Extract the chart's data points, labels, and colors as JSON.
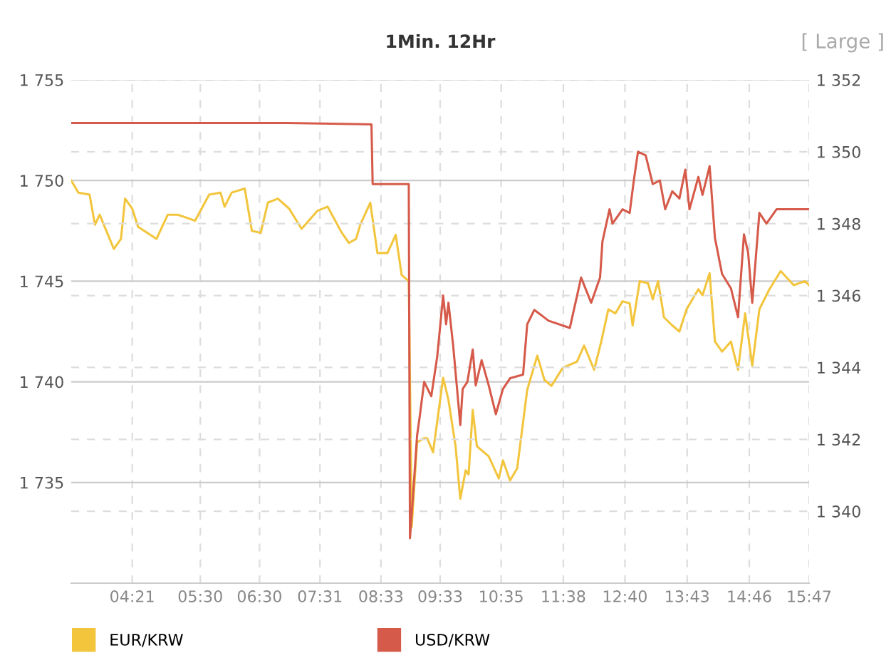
{
  "chart_data": {
    "type": "line",
    "title": "1Min. 12Hr",
    "annotations": [
      "[ Large ]"
    ],
    "xlim": [
      3.32,
      15.78
    ],
    "xticks": [
      {
        "value": 4.35,
        "label": "04:21"
      },
      {
        "value": 5.5,
        "label": "05:30"
      },
      {
        "value": 6.5,
        "label": "06:30"
      },
      {
        "value": 7.52,
        "label": "07:31"
      },
      {
        "value": 8.55,
        "label": "08:33"
      },
      {
        "value": 9.55,
        "label": "09:33"
      },
      {
        "value": 10.58,
        "label": "10:35"
      },
      {
        "value": 11.63,
        "label": "11:38"
      },
      {
        "value": 12.67,
        "label": "12:40"
      },
      {
        "value": 13.72,
        "label": "13:43"
      },
      {
        "value": 14.77,
        "label": "14:46"
      },
      {
        "value": 15.78,
        "label": "15:47"
      }
    ],
    "ylim": [
      1730,
      1755
    ],
    "yticks": [
      {
        "value": 1735,
        "label": "1 735"
      },
      {
        "value": 1740,
        "label": "1 740"
      },
      {
        "value": 1745,
        "label": "1 745"
      },
      {
        "value": 1750,
        "label": "1 750"
      },
      {
        "value": 1755,
        "label": "1 755"
      }
    ],
    "y2lim": [
      1338,
      1352
    ],
    "y2ticks": [
      {
        "value": 1340,
        "label": "1 340"
      },
      {
        "value": 1342,
        "label": "1 342"
      },
      {
        "value": 1344,
        "label": "1 344"
      },
      {
        "value": 1346,
        "label": "1 346"
      },
      {
        "value": 1348,
        "label": "1 348"
      },
      {
        "value": 1350,
        "label": "1 350"
      },
      {
        "value": 1352,
        "label": "1 352"
      }
    ],
    "grid": true,
    "legend": "bottom left",
    "series": [
      {
        "name": "EUR/KRW",
        "color": "#f2c53d",
        "x": [
          3.32,
          3.44,
          3.63,
          3.72,
          3.8,
          3.97,
          4.04,
          4.16,
          4.23,
          4.35,
          4.45,
          4.76,
          4.95,
          5.12,
          5.41,
          5.65,
          5.84,
          5.91,
          6.03,
          6.25,
          6.37,
          6.52,
          6.64,
          6.81,
          7.0,
          7.21,
          7.48,
          7.65,
          7.89,
          8.01,
          8.13,
          8.2,
          8.37,
          8.49,
          8.66,
          8.8,
          8.9,
          9.02,
          9.07,
          9.16,
          9.28,
          9.33,
          9.43,
          9.6,
          9.69,
          9.81,
          9.89,
          9.98,
          10.03,
          10.1,
          10.17,
          10.37,
          10.54,
          10.61,
          10.73,
          10.85,
          11.02,
          11.19,
          11.31,
          11.43,
          11.62,
          11.86,
          11.98,
          12.15,
          12.27,
          12.39,
          12.51,
          12.63,
          12.75,
          12.8,
          12.92,
          13.06,
          13.14,
          13.23,
          13.33,
          13.47,
          13.59,
          13.71,
          13.91,
          13.98,
          14.1,
          14.19,
          14.31,
          14.46,
          14.58,
          14.7,
          14.82,
          14.94,
          15.11,
          15.3,
          15.52,
          15.71,
          15.78
        ],
        "values": [
          1750.0,
          1749.4,
          1749.3,
          1747.8,
          1748.3,
          1747.1,
          1746.6,
          1747.1,
          1749.1,
          1748.6,
          1747.7,
          1747.1,
          1748.3,
          1748.3,
          1748.0,
          1749.3,
          1749.4,
          1748.7,
          1749.4,
          1749.6,
          1747.5,
          1747.4,
          1748.9,
          1749.1,
          1748.6,
          1747.6,
          1748.5,
          1748.7,
          1747.4,
          1746.9,
          1747.1,
          1747.8,
          1748.9,
          1746.4,
          1746.4,
          1747.3,
          1745.3,
          1745.0,
          1732.8,
          1737.0,
          1737.2,
          1737.2,
          1736.5,
          1740.2,
          1739.1,
          1736.8,
          1734.2,
          1735.6,
          1735.4,
          1738.6,
          1736.8,
          1736.3,
          1735.2,
          1736.1,
          1735.1,
          1735.7,
          1739.6,
          1741.3,
          1740.1,
          1739.8,
          1740.7,
          1741.0,
          1741.8,
          1740.6,
          1742.0,
          1743.6,
          1743.4,
          1744.0,
          1743.9,
          1742.8,
          1745.0,
          1744.9,
          1744.1,
          1745.0,
          1743.2,
          1742.8,
          1742.5,
          1743.6,
          1744.6,
          1744.3,
          1745.4,
          1742.0,
          1741.5,
          1742.0,
          1740.6,
          1743.4,
          1740.8,
          1743.6,
          1744.6,
          1745.5,
          1744.8,
          1745.0,
          1744.8
        ]
      },
      {
        "name": "USD/KRW",
        "color": "#d65a4a",
        "axis": "y2",
        "x": [
          3.32,
          6.97,
          8.39,
          8.41,
          9.02,
          9.04,
          9.09,
          9.16,
          9.21,
          9.28,
          9.4,
          9.5,
          9.6,
          9.65,
          9.69,
          9.77,
          9.89,
          9.93,
          10.01,
          10.1,
          10.15,
          10.25,
          10.37,
          10.49,
          10.61,
          10.73,
          10.95,
          11.02,
          11.14,
          11.38,
          11.74,
          11.93,
          12.1,
          12.25,
          12.29,
          12.41,
          12.46,
          12.63,
          12.75,
          12.82,
          12.89,
          13.02,
          13.14,
          13.26,
          13.35,
          13.47,
          13.59,
          13.69,
          13.76,
          13.91,
          13.98,
          14.1,
          14.19,
          14.31,
          14.46,
          14.58,
          14.68,
          14.75,
          14.82,
          14.94,
          15.06,
          15.23,
          15.78
        ],
        "values": [
          1350.8,
          1350.8,
          1350.76,
          1349.1,
          1349.1,
          1339.25,
          1340.4,
          1342.1,
          1342.7,
          1343.6,
          1343.2,
          1344.3,
          1346.0,
          1345.2,
          1345.8,
          1344.6,
          1342.4,
          1343.4,
          1343.6,
          1344.5,
          1343.5,
          1344.2,
          1343.5,
          1342.7,
          1343.4,
          1343.7,
          1343.8,
          1345.2,
          1345.6,
          1345.3,
          1345.1,
          1346.5,
          1345.8,
          1346.5,
          1347.5,
          1348.4,
          1348.0,
          1348.4,
          1348.3,
          1349.2,
          1350.0,
          1349.9,
          1349.1,
          1349.2,
          1348.4,
          1348.9,
          1348.7,
          1349.5,
          1348.4,
          1349.3,
          1348.8,
          1349.6,
          1347.6,
          1346.6,
          1346.2,
          1345.4,
          1347.7,
          1347.2,
          1345.8,
          1348.3,
          1348.0,
          1348.4,
          1348.4
        ]
      }
    ]
  }
}
